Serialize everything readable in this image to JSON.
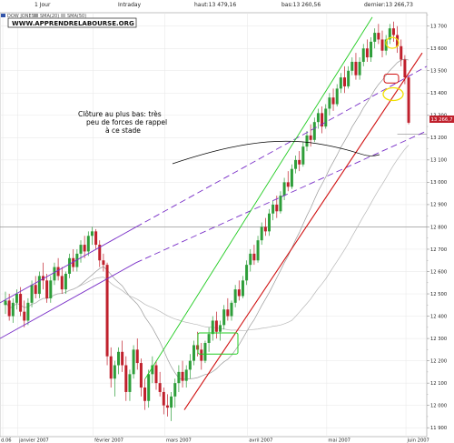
{
  "header": {
    "period": "1 Jour",
    "mode": "Intraday",
    "high": "haut:13 479,16",
    "low": "bas:13 260,56",
    "last": "dernier:13 266,73"
  },
  "watermark": "WWW.APPRENDRELABOURSE.ORG",
  "annotation": [
    "Clôture au plus bas: très",
    "peu de forces de rappel",
    "à ce stade"
  ],
  "colors": {
    "up": "#2e9e3a",
    "down": "#c0202c",
    "channel": "#7a30c8",
    "green_line": "#22cc22",
    "red_line": "#d01010",
    "yellow": "#f0e000",
    "grid": "#e6e6e6"
  },
  "chart_data": {
    "type": "candlestick",
    "legend": [
      "DOW JONES",
      "SMA(20)",
      "SMA(50)"
    ],
    "ylim": [
      11860,
      13760
    ],
    "y_ticks": [
      "11 900",
      "12 000",
      "12 100",
      "12 200",
      "12 300",
      "12 400",
      "12 500",
      "12 600",
      "12 700",
      "12 800",
      "12 900",
      "13 000",
      "13 100",
      "13 200",
      "13 300",
      "13 400",
      "13 500",
      "13 600",
      "13 700"
    ],
    "y_tick_values": [
      11900,
      12000,
      12100,
      12200,
      12300,
      12400,
      12500,
      12600,
      12700,
      12800,
      12900,
      13000,
      13100,
      13200,
      13300,
      13400,
      13500,
      13600,
      13700
    ],
    "x_labels": [
      "d.06",
      "janvier 2007",
      "février 2007",
      "mars 2007",
      "avril 2007",
      "mai 2007",
      "juin 2007"
    ],
    "x_label_index": [
      0,
      4,
      24,
      43,
      65,
      86,
      107
    ],
    "last_value_label": "13 266,7",
    "ohlc": [
      [
        12450,
        12510,
        12410,
        12470
      ],
      [
        12470,
        12500,
        12380,
        12400
      ],
      [
        12400,
        12480,
        12370,
        12460
      ],
      [
        12460,
        12520,
        12430,
        12500
      ],
      [
        12500,
        12530,
        12400,
        12420
      ],
      [
        12420,
        12470,
        12350,
        12380
      ],
      [
        12380,
        12480,
        12360,
        12460
      ],
      [
        12460,
        12560,
        12440,
        12540
      ],
      [
        12540,
        12580,
        12480,
        12500
      ],
      [
        12500,
        12600,
        12480,
        12580
      ],
      [
        12580,
        12640,
        12520,
        12560
      ],
      [
        12560,
        12590,
        12460,
        12480
      ],
      [
        12480,
        12580,
        12460,
        12560
      ],
      [
        12560,
        12640,
        12540,
        12620
      ],
      [
        12620,
        12660,
        12560,
        12580
      ],
      [
        12580,
        12620,
        12500,
        12520
      ],
      [
        12520,
        12600,
        12500,
        12590
      ],
      [
        12590,
        12680,
        12570,
        12660
      ],
      [
        12660,
        12700,
        12600,
        12620
      ],
      [
        12620,
        12700,
        12600,
        12680
      ],
      [
        12680,
        12740,
        12640,
        12720
      ],
      [
        12720,
        12760,
        12660,
        12690
      ],
      [
        12690,
        12780,
        12670,
        12760
      ],
      [
        12760,
        12800,
        12720,
        12780
      ],
      [
        12780,
        12790,
        12700,
        12720
      ],
      [
        12720,
        12740,
        12620,
        12650
      ],
      [
        12650,
        12680,
        12600,
        12630
      ],
      [
        12630,
        12640,
        12180,
        12220
      ],
      [
        12220,
        12260,
        12080,
        12120
      ],
      [
        12120,
        12200,
        12040,
        12180
      ],
      [
        12180,
        12260,
        12140,
        12240
      ],
      [
        12240,
        12290,
        12150,
        12180
      ],
      [
        12180,
        12220,
        12020,
        12060
      ],
      [
        12060,
        12160,
        12020,
        12140
      ],
      [
        12140,
        12270,
        12120,
        12250
      ],
      [
        12250,
        12300,
        12160,
        12190
      ],
      [
        12190,
        12210,
        12040,
        12080
      ],
      [
        12080,
        12120,
        11980,
        12020
      ],
      [
        12020,
        12160,
        11990,
        12140
      ],
      [
        12140,
        12220,
        12100,
        12180
      ],
      [
        12180,
        12200,
        12070,
        12100
      ],
      [
        12100,
        12150,
        12040,
        12060
      ],
      [
        12060,
        12080,
        11960,
        12000
      ],
      [
        12000,
        12050,
        11950,
        11990
      ],
      [
        11990,
        12060,
        11930,
        12040
      ],
      [
        12040,
        12120,
        11990,
        12100
      ],
      [
        12100,
        12180,
        12060,
        12150
      ],
      [
        12150,
        12200,
        12080,
        12110
      ],
      [
        12110,
        12180,
        12080,
        12160
      ],
      [
        12160,
        12230,
        12120,
        12200
      ],
      [
        12200,
        12290,
        12180,
        12270
      ],
      [
        12270,
        12330,
        12220,
        12250
      ],
      [
        12250,
        12280,
        12160,
        12200
      ],
      [
        12200,
        12290,
        12190,
        12280
      ],
      [
        12280,
        12350,
        12240,
        12320
      ],
      [
        12320,
        12400,
        12290,
        12380
      ],
      [
        12380,
        12420,
        12300,
        12330
      ],
      [
        12330,
        12380,
        12290,
        12360
      ],
      [
        12360,
        12450,
        12340,
        12430
      ],
      [
        12430,
        12480,
        12380,
        12400
      ],
      [
        12400,
        12470,
        12380,
        12460
      ],
      [
        12460,
        12540,
        12440,
        12520
      ],
      [
        12520,
        12560,
        12470,
        12490
      ],
      [
        12490,
        12580,
        12480,
        12560
      ],
      [
        12560,
        12650,
        12540,
        12630
      ],
      [
        12630,
        12700,
        12600,
        12680
      ],
      [
        12680,
        12720,
        12630,
        12650
      ],
      [
        12650,
        12760,
        12640,
        12740
      ],
      [
        12740,
        12820,
        12720,
        12800
      ],
      [
        12800,
        12840,
        12760,
        12780
      ],
      [
        12780,
        12880,
        12760,
        12860
      ],
      [
        12860,
        12920,
        12830,
        12900
      ],
      [
        12900,
        12940,
        12840,
        12870
      ],
      [
        12870,
        12960,
        12860,
        12940
      ],
      [
        12940,
        13020,
        12920,
        13000
      ],
      [
        13000,
        13050,
        12960,
        12980
      ],
      [
        12980,
        13080,
        12970,
        13060
      ],
      [
        13060,
        13120,
        13040,
        13100
      ],
      [
        13100,
        13140,
        13050,
        13080
      ],
      [
        13080,
        13180,
        13070,
        13160
      ],
      [
        13160,
        13230,
        13140,
        13210
      ],
      [
        13210,
        13260,
        13160,
        13190
      ],
      [
        13190,
        13290,
        13180,
        13270
      ],
      [
        13270,
        13330,
        13240,
        13310
      ],
      [
        13310,
        13340,
        13220,
        13250
      ],
      [
        13250,
        13350,
        13240,
        13330
      ],
      [
        13330,
        13400,
        13300,
        13380
      ],
      [
        13380,
        13420,
        13320,
        13350
      ],
      [
        13350,
        13440,
        13340,
        13420
      ],
      [
        13420,
        13490,
        13400,
        13470
      ],
      [
        13470,
        13520,
        13400,
        13430
      ],
      [
        13430,
        13520,
        13420,
        13500
      ],
      [
        13500,
        13560,
        13480,
        13540
      ],
      [
        13540,
        13580,
        13460,
        13480
      ],
      [
        13480,
        13560,
        13460,
        13540
      ],
      [
        13540,
        13620,
        13520,
        13600
      ],
      [
        13600,
        13640,
        13540,
        13560
      ],
      [
        13560,
        13650,
        13540,
        13630
      ],
      [
        13630,
        13690,
        13600,
        13670
      ],
      [
        13670,
        13710,
        13620,
        13640
      ],
      [
        13640,
        13680,
        13560,
        13590
      ],
      [
        13590,
        13660,
        13570,
        13640
      ],
      [
        13640,
        13710,
        13620,
        13690
      ],
      [
        13690,
        13720,
        13630,
        13660
      ],
      [
        13660,
        13700,
        13580,
        13610
      ],
      [
        13610,
        13640,
        13520,
        13550
      ],
      [
        13550,
        13570,
        13440,
        13470
      ],
      [
        13470,
        13480,
        13260,
        13267
      ]
    ]
  }
}
